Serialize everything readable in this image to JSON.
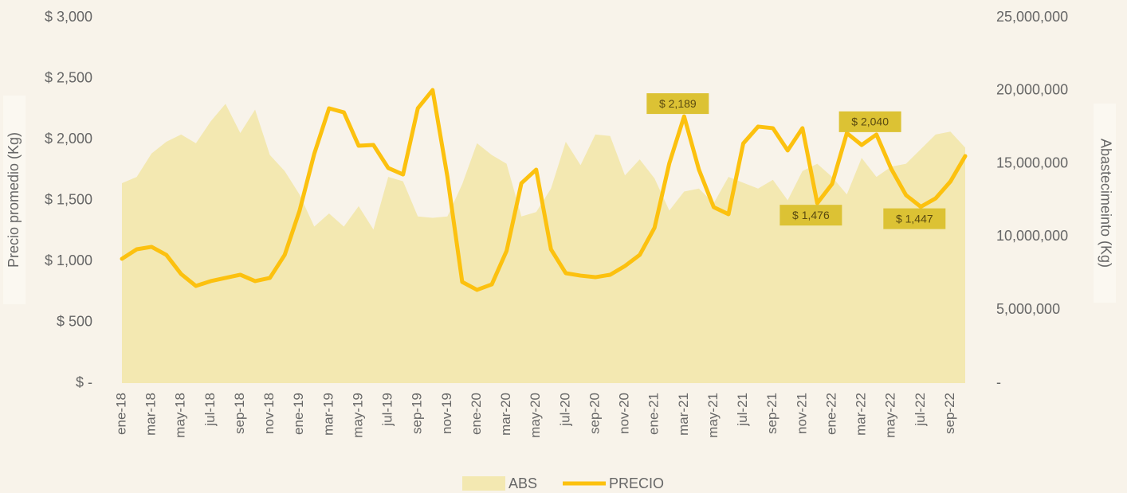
{
  "chart_data": {
    "type": "line",
    "y_label": "Precio promedio (Kg)",
    "y2_label": "Abastecimeinto (Kg)",
    "categories": [
      "ene-18",
      null,
      "mar-18",
      null,
      "may-18",
      null,
      "jul-18",
      null,
      "sep-18",
      null,
      "nov-18",
      null,
      "ene-19",
      null,
      "mar-19",
      null,
      "may-19",
      null,
      "jul-19",
      null,
      "sep-19",
      null,
      "nov-19",
      null,
      "ene-20",
      null,
      "mar-20",
      null,
      "may-20",
      null,
      "jul-20",
      null,
      "sep-20",
      null,
      "nov-20",
      null,
      "ene-21",
      null,
      "mar-21",
      null,
      "may-21",
      null,
      "jul-21",
      null,
      "sep-21",
      null,
      "nov-21",
      null,
      "ene-22",
      null,
      "mar-22",
      null,
      "may-22",
      null,
      "jul-22",
      null,
      "sep-22",
      null
    ],
    "series": [
      {
        "name": "ABS",
        "type": "area",
        "axis": "y2",
        "color": "#f3e8b1",
        "values": [
          13670000,
          14100000,
          15700000,
          16500000,
          17000000,
          16400000,
          17900000,
          19100000,
          17100000,
          18700000,
          15600000,
          14500000,
          12900000,
          10700000,
          11600000,
          10700000,
          12100000,
          10500000,
          14100000,
          13800000,
          11400000,
          11300000,
          11400000,
          13600000,
          16400000,
          15600000,
          15000000,
          11400000,
          11700000,
          13300000,
          16500000,
          14900000,
          17000000,
          16900000,
          14200000,
          15300000,
          14000000,
          11800000,
          13100000,
          13300000,
          12300000,
          14100000,
          13700000,
          13300000,
          13900000,
          12500000,
          14500000,
          15000000,
          14100000,
          12900000,
          15400000,
          14100000,
          14800000,
          15000000,
          16000000,
          17000000,
          17200000,
          16100000
        ]
      },
      {
        "name": "PRECIO",
        "type": "line",
        "color": "#fcc10f",
        "values": [
          1020,
          1098,
          1118,
          1052,
          895,
          797,
          837,
          863,
          889,
          837,
          863,
          1052,
          1412,
          1882,
          2255,
          2222,
          1948,
          1954,
          1765,
          1712,
          2255,
          2405,
          1693,
          830,
          765,
          810,
          1085,
          1640,
          1752,
          1098,
          902,
          882,
          869,
          889,
          961,
          1052,
          1275,
          1804,
          2189,
          1752,
          1444,
          1386,
          1967,
          2105,
          2092,
          1909,
          2092,
          1476,
          1634,
          2052,
          1954,
          2040,
          1758,
          1542,
          1447,
          1516,
          1654,
          1863
        ],
        "value_labels": [
          null,
          null,
          null,
          null,
          null,
          null,
          null,
          null,
          null,
          null,
          null,
          null,
          null,
          null,
          null,
          null,
          null,
          null,
          null,
          null,
          null,
          null,
          null,
          null,
          null,
          null,
          null,
          null,
          null,
          null,
          null,
          null,
          null,
          null,
          null,
          null,
          null,
          null,
          "$ 2,189",
          null,
          null,
          null,
          null,
          null,
          null,
          null,
          null,
          "$ 1,476",
          null,
          null,
          null,
          "$ 2,040",
          null,
          null,
          "$ 1,447",
          null,
          null,
          null
        ],
        "label_color": "#dcc234"
      }
    ],
    "ylim": [
      0,
      3000
    ],
    "yticks": [
      {
        "value": 0,
        "label": "$ -"
      },
      {
        "value": 500,
        "label": "$ 500"
      },
      {
        "value": 1000,
        "label": "$ 1,000"
      },
      {
        "value": 1500,
        "label": "$ 1,500"
      },
      {
        "value": 2000,
        "label": "$ 2,000"
      },
      {
        "value": 2500,
        "label": "$ 2,500"
      },
      {
        "value": 3000,
        "label": "$ 3,000"
      }
    ],
    "y2lim": [
      0,
      25000000
    ],
    "y2ticks": [
      {
        "value": 0,
        "label": "-"
      },
      {
        "value": 5000000,
        "label": "5,000,000"
      },
      {
        "value": 10000000,
        "label": "10,000,000"
      },
      {
        "value": 15000000,
        "label": "15,000,000"
      },
      {
        "value": 20000000,
        "label": "20,000,000"
      },
      {
        "value": 25000000,
        "label": "25,000,000"
      }
    ],
    "grid": false
  }
}
